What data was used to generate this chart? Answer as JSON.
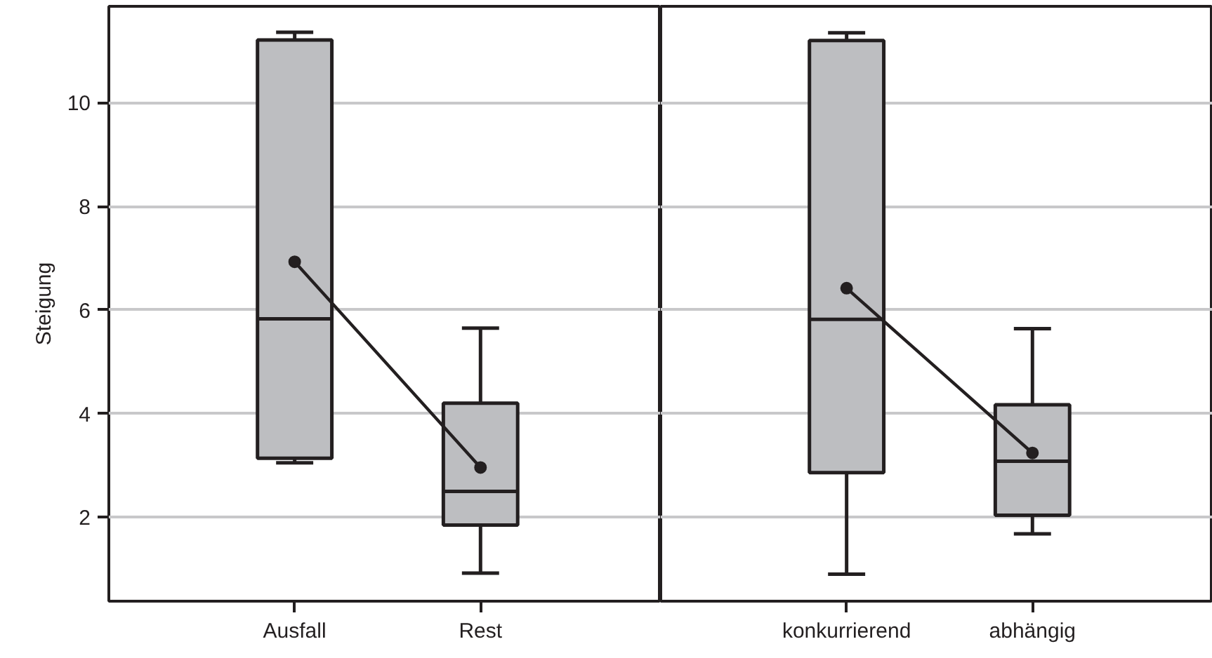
{
  "chart_data": [
    {
      "type": "box",
      "ylabel": "Steigung",
      "categories": [
        "Ausfall",
        "Rest"
      ],
      "color": "#bdbec1",
      "ylim": [
        0.38,
        11.86
      ],
      "yticks": [
        2,
        4,
        6,
        8,
        10
      ],
      "grid": "y",
      "boxes": [
        {
          "low": 3.05,
          "q1": 3.14,
          "median": 5.83,
          "q3": 11.21,
          "high": 11.36
        },
        {
          "low": 0.92,
          "q1": 1.85,
          "median": 2.5,
          "q3": 4.2,
          "high": 5.65
        }
      ],
      "series": [
        {
          "type": "line",
          "color": "#231f20",
          "marker": "circle",
          "x": [
            "Ausfall",
            "Rest"
          ],
          "values": [
            6.93,
            2.96
          ]
        }
      ]
    },
    {
      "type": "box",
      "categories": [
        "konkurrierend",
        "abhängig"
      ],
      "color": "#bdbec1",
      "ylim": [
        0.38,
        11.86
      ],
      "yticks": [
        2,
        4,
        6,
        8,
        10
      ],
      "grid": "y",
      "tick_labels": "x",
      "boxes": [
        {
          "low": 0.9,
          "q1": 2.86,
          "median": 5.82,
          "q3": 11.2,
          "high": 11.35
        },
        {
          "low": 1.68,
          "q1": 2.04,
          "median": 3.08,
          "q3": 4.17,
          "high": 5.64
        }
      ],
      "series": [
        {
          "type": "line",
          "color": "#231f20",
          "marker": "circle",
          "x": [
            "konkurrierend",
            "abhängig"
          ],
          "values": [
            6.42,
            3.24
          ]
        }
      ]
    }
  ]
}
